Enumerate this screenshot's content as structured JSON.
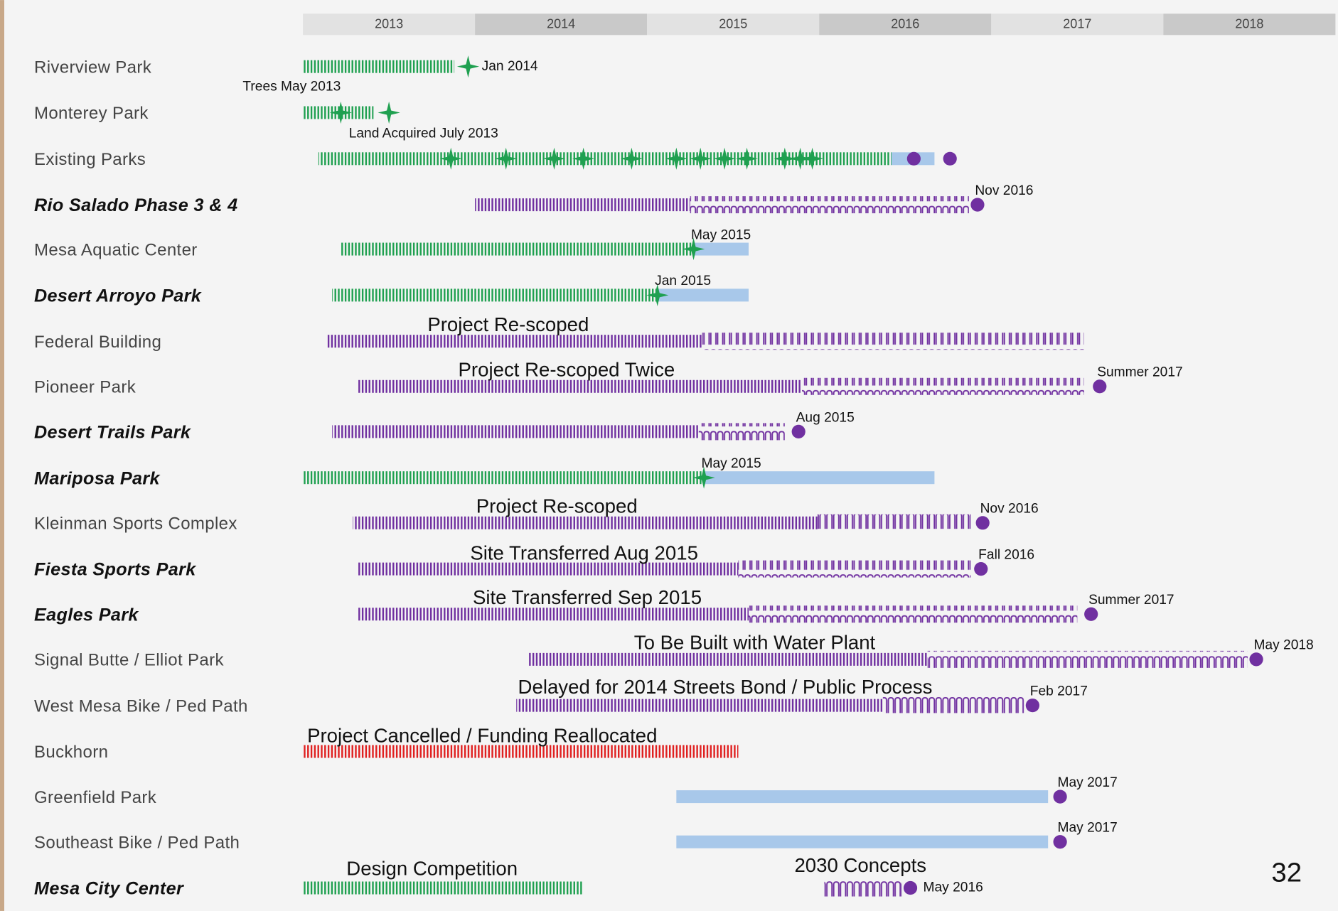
{
  "chart_data": {
    "type": "timeline",
    "xlim": [
      2013,
      2019
    ],
    "xticks": [
      2013,
      2014,
      2015,
      2016,
      2017,
      2018
    ],
    "page_number": "32",
    "colors": {
      "green": "#1fa050",
      "purple": "#7030a0",
      "blue": "#a8c8ea",
      "red": "#e02020"
    },
    "rows": [
      {
        "label": "Riverview Park",
        "emphasis": false,
        "segments": [
          {
            "start": 2013,
            "end": 2013.88,
            "color": "green",
            "pattern": "hatch"
          }
        ],
        "markers": [
          {
            "x": 2013.96,
            "shape": "star",
            "label": "Jan 2014"
          }
        ]
      },
      {
        "label": "Monterey Park",
        "emphasis": false,
        "segments": [
          {
            "start": 2013,
            "end": 2013.41,
            "color": "green",
            "pattern": "hatch"
          }
        ],
        "markers": [
          {
            "x": 2013.22,
            "shape": "star",
            "label": "Trees May 2013"
          },
          {
            "x": 2013.5,
            "shape": "star",
            "label": "Land Acquired July 2013"
          }
        ]
      },
      {
        "label": "Existing Parks",
        "emphasis": false,
        "segments": [
          {
            "start": 2013.09,
            "end": 2016.42,
            "color": "green",
            "pattern": "hatch"
          },
          {
            "start": 2016.42,
            "end": 2016.67,
            "color": "blue",
            "pattern": "solid"
          }
        ],
        "markers": [
          {
            "x": 2013.86,
            "shape": "star"
          },
          {
            "x": 2014.18,
            "shape": "star"
          },
          {
            "x": 2014.46,
            "shape": "star"
          },
          {
            "x": 2014.63,
            "shape": "star"
          },
          {
            "x": 2014.91,
            "shape": "star"
          },
          {
            "x": 2015.17,
            "shape": "star"
          },
          {
            "x": 2015.31,
            "shape": "star"
          },
          {
            "x": 2015.45,
            "shape": "star"
          },
          {
            "x": 2015.58,
            "shape": "star"
          },
          {
            "x": 2015.8,
            "shape": "star"
          },
          {
            "x": 2015.89,
            "shape": "star"
          },
          {
            "x": 2015.96,
            "shape": "star"
          },
          {
            "x": 2016.55,
            "shape": "dot"
          },
          {
            "x": 2016.76,
            "shape": "dot"
          }
        ]
      },
      {
        "label": "Rio Salado Phase 3 & 4",
        "emphasis": true,
        "segments": [
          {
            "start": 2014,
            "end": 2015.25,
            "color": "purple",
            "pattern": "hatch"
          },
          {
            "start": 2015.25,
            "end": 2016.87,
            "color": "purple",
            "pattern": "wave"
          }
        ],
        "markers": [
          {
            "x": 2016.92,
            "shape": "dot",
            "label": "Nov 2016"
          }
        ]
      },
      {
        "label": "Mesa Aquatic Center",
        "emphasis": false,
        "segments": [
          {
            "start": 2013.22,
            "end": 2015.27,
            "color": "green",
            "pattern": "hatch"
          },
          {
            "start": 2015.27,
            "end": 2015.59,
            "color": "blue",
            "pattern": "solid"
          }
        ],
        "markers": [
          {
            "x": 2015.27,
            "shape": "star",
            "label": "May 2015"
          }
        ]
      },
      {
        "label": "Desert Arroyo Park",
        "emphasis": true,
        "segments": [
          {
            "start": 2013.17,
            "end": 2015.06,
            "color": "green",
            "pattern": "hatch"
          },
          {
            "start": 2015.06,
            "end": 2015.59,
            "color": "blue",
            "pattern": "solid"
          }
        ],
        "markers": [
          {
            "x": 2015.06,
            "shape": "star",
            "label": "Jan 2015"
          }
        ]
      },
      {
        "label": "Federal Building",
        "emphasis": false,
        "segments": [
          {
            "start": 2013.14,
            "end": 2015.32,
            "color": "purple",
            "pattern": "hatch",
            "note": "Project Re-scoped"
          },
          {
            "start": 2015.32,
            "end": 2017.54,
            "color": "purple",
            "pattern": "wave"
          }
        ],
        "markers": []
      },
      {
        "label": "Pioneer Park",
        "emphasis": false,
        "segments": [
          {
            "start": 2013.32,
            "end": 2015.9,
            "color": "purple",
            "pattern": "hatch",
            "note": "Project Re-scoped Twice"
          },
          {
            "start": 2015.9,
            "end": 2017.54,
            "color": "purple",
            "pattern": "wave"
          }
        ],
        "markers": [
          {
            "x": 2017.63,
            "shape": "dot",
            "label": "Summer 2017"
          }
        ]
      },
      {
        "label": "Desert Trails Park",
        "emphasis": true,
        "segments": [
          {
            "start": 2013.17,
            "end": 2015.3,
            "color": "purple",
            "pattern": "hatch"
          },
          {
            "start": 2015.3,
            "end": 2015.8,
            "color": "purple",
            "pattern": "wave"
          }
        ],
        "markers": [
          {
            "x": 2015.88,
            "shape": "dot",
            "label": "Aug 2015"
          }
        ]
      },
      {
        "label": "Mariposa Park",
        "emphasis": true,
        "segments": [
          {
            "start": 2013,
            "end": 2015.33,
            "color": "green",
            "pattern": "hatch"
          },
          {
            "start": 2015.33,
            "end": 2016.67,
            "color": "blue",
            "pattern": "solid"
          }
        ],
        "markers": [
          {
            "x": 2015.33,
            "shape": "star",
            "label": "May 2015"
          }
        ]
      },
      {
        "label": "Kleinman Sports Complex",
        "emphasis": false,
        "segments": [
          {
            "start": 2013.29,
            "end": 2015.99,
            "color": "purple",
            "pattern": "hatch",
            "note": "Project Re-scoped"
          },
          {
            "start": 2015.99,
            "end": 2016.88,
            "color": "purple",
            "pattern": "wave"
          }
        ],
        "markers": [
          {
            "x": 2016.95,
            "shape": "dot",
            "label": "Nov 2016"
          }
        ]
      },
      {
        "label": "Fiesta Sports Park",
        "emphasis": true,
        "segments": [
          {
            "start": 2013.32,
            "end": 2015.53,
            "color": "purple",
            "pattern": "hatch",
            "note": "Site Transferred Aug 2015"
          },
          {
            "start": 2015.53,
            "end": 2016.88,
            "color": "purple",
            "pattern": "wave"
          }
        ],
        "markers": [
          {
            "x": 2016.94,
            "shape": "dot",
            "label": "Fall 2016"
          }
        ]
      },
      {
        "label": "Eagles Park",
        "emphasis": true,
        "segments": [
          {
            "start": 2013.32,
            "end": 2015.59,
            "color": "purple",
            "pattern": "hatch",
            "note": "Site Transferred Sep 2015"
          },
          {
            "start": 2015.59,
            "end": 2017.5,
            "color": "purple",
            "pattern": "wave"
          }
        ],
        "markers": [
          {
            "x": 2017.58,
            "shape": "dot",
            "label": "Summer 2017"
          }
        ]
      },
      {
        "label": "Signal Butte / Elliot Park",
        "emphasis": false,
        "segments": [
          {
            "start": 2014.31,
            "end": 2016.63,
            "color": "purple",
            "pattern": "hatch",
            "note": "To Be Built with Water Plant"
          },
          {
            "start": 2016.63,
            "end": 2018.49,
            "color": "purple",
            "pattern": "wave"
          }
        ],
        "markers": [
          {
            "x": 2018.54,
            "shape": "dot",
            "label": "May 2018"
          }
        ]
      },
      {
        "label": "West Mesa Bike / Ped Path",
        "emphasis": false,
        "segments": [
          {
            "start": 2014.24,
            "end": 2016.37,
            "color": "purple",
            "pattern": "hatch",
            "note": "Delayed for 2014 Streets Bond / Public Process"
          },
          {
            "start": 2016.37,
            "end": 2017.19,
            "color": "purple",
            "pattern": "wave"
          }
        ],
        "markers": [
          {
            "x": 2017.24,
            "shape": "dot",
            "label": "Feb 2017"
          }
        ]
      },
      {
        "label": "Buckhorn",
        "emphasis": false,
        "segments": [
          {
            "start": 2013,
            "end": 2015.53,
            "color": "red",
            "pattern": "hatch",
            "note": "Project Cancelled / Funding Reallocated"
          }
        ],
        "markers": []
      },
      {
        "label": "Greenfield Park",
        "emphasis": false,
        "segments": [
          {
            "start": 2015.17,
            "end": 2017.33,
            "color": "blue",
            "pattern": "solid"
          }
        ],
        "markers": [
          {
            "x": 2017.4,
            "shape": "dot",
            "label": "May 2017"
          }
        ]
      },
      {
        "label": "Southeast Bike / Ped Path",
        "emphasis": false,
        "segments": [
          {
            "start": 2015.17,
            "end": 2017.33,
            "color": "blue",
            "pattern": "solid"
          }
        ],
        "markers": [
          {
            "x": 2017.4,
            "shape": "dot",
            "label": "May 2017"
          }
        ]
      },
      {
        "label": "Mesa City Center",
        "emphasis": true,
        "segments": [
          {
            "start": 2013,
            "end": 2014.63,
            "color": "green",
            "pattern": "hatch",
            "note": "Design Competition"
          },
          {
            "start": 2016.03,
            "end": 2016.48,
            "color": "purple",
            "pattern": "wave",
            "note": "2030 Concepts"
          }
        ],
        "markers": [
          {
            "x": 2016.53,
            "shape": "dot",
            "label": "May 2016"
          }
        ]
      }
    ]
  }
}
